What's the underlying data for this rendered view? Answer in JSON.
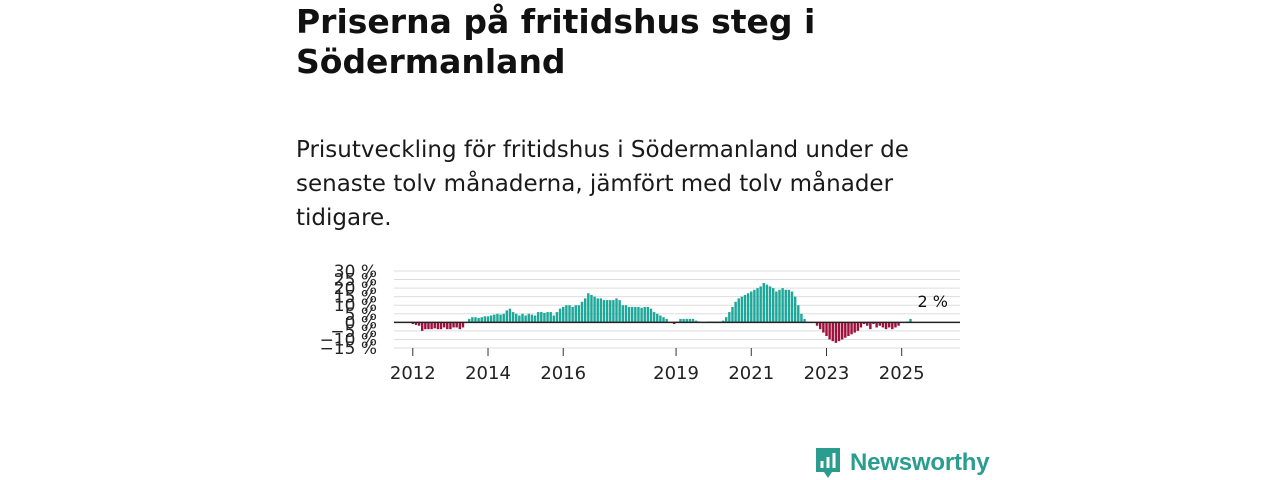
{
  "header": {
    "title": "Priserna på fritidshus steg i Södermanland",
    "subtitle": "Prisutveckling för fritidshus i Södermanland under de senaste tolv månaderna, jämfört med tolv månader tidigare."
  },
  "brand": {
    "name": "Newsworthy",
    "icon": "newsworthy-logo-icon"
  },
  "colors": {
    "positive": "#1fa89a",
    "negative": "#a0103f",
    "grid": "#dddddd",
    "zero_line": "#222222"
  },
  "chart_data": {
    "type": "bar",
    "title": "Priserna på fritidshus steg i Södermanland",
    "xlabel": "",
    "ylabel": "",
    "ylim": [
      -15,
      30
    ],
    "y_ticks": [
      -15,
      -10,
      -5,
      0,
      5,
      10,
      15,
      20,
      25,
      30
    ],
    "y_tick_labels": [
      "−15 %",
      "−10 %",
      "−5 %",
      "0 %",
      "5 %",
      "10 %",
      "15 %",
      "20 %",
      "25 %",
      "30 %"
    ],
    "xlim": [
      2011.5,
      2026.55
    ],
    "x_ticks": [
      2012,
      2014,
      2016,
      2019,
      2021,
      2023,
      2025
    ],
    "x_tick_labels": [
      "2012",
      "2014",
      "2016",
      "2019",
      "2021",
      "2023",
      "2025"
    ],
    "last_value_label": "2 %",
    "segments": [
      {
        "start": 2012.0,
        "values": [
          -1,
          -1.5,
          -2,
          -5,
          -4,
          -4,
          -4,
          -3.5,
          -4,
          -4,
          -3,
          -4,
          -4,
          -3,
          -3,
          -4,
          -3
        ]
      },
      {
        "start": 2013.5,
        "values": [
          2,
          3,
          3,
          2.5,
          3,
          3.5,
          3.5,
          4,
          4.5,
          5,
          4.5,
          5,
          7,
          8,
          6,
          5,
          4,
          5,
          4,
          5,
          4.5,
          4,
          6,
          6,
          5.5,
          6,
          6,
          4,
          6,
          8,
          9,
          10,
          10,
          9,
          10,
          10,
          12,
          14,
          17,
          16,
          15,
          14,
          14,
          13,
          13,
          13,
          13,
          14,
          13,
          10,
          10,
          9,
          9,
          9,
          9,
          8.5,
          9,
          9,
          8,
          6,
          5,
          4,
          3,
          2
        ]
      },
      {
        "start": 2018.95,
        "values": [
          -1,
          0.5,
          2,
          2,
          2,
          2,
          2,
          1,
          0.5
        ]
      },
      {
        "start": 2019.85,
        "values": [
          0.5,
          0.5,
          0.5,
          0.5,
          0.5,
          0.5,
          0.5
        ]
      },
      {
        "start": 2020.25,
        "values": [
          1,
          3,
          6,
          9,
          12,
          14,
          15,
          16,
          17,
          18,
          19,
          20,
          21,
          23,
          22,
          21,
          20,
          18,
          19,
          20,
          19,
          19,
          18,
          15,
          10,
          5,
          2
        ]
      },
      {
        "start": 2022.75,
        "values": [
          -2,
          -4,
          -6,
          -8,
          -10,
          -11,
          -12,
          -11,
          -10,
          -9,
          -8,
          -7,
          -6,
          -5,
          -3
        ]
      },
      {
        "start": 2024.0,
        "values": [
          -1,
          -2,
          -4,
          -1,
          -3,
          -2,
          -3,
          -4,
          -3,
          -4,
          -3,
          -2
        ]
      },
      {
        "start": 2025.15,
        "values": [
          0.5,
          2
        ]
      }
    ]
  }
}
